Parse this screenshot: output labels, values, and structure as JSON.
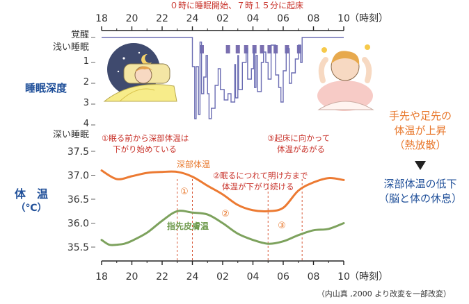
{
  "chart_data": [
    {
      "type": "line",
      "title": "０時に睡眠開始、７時１５分に起床",
      "ylabel": "睡眠深度",
      "x_ticks": [
        "18",
        "20",
        "22",
        "24",
        "02",
        "04",
        "06",
        "08",
        "10"
      ],
      "x_unit": "（時刻）",
      "y_tick_labels": [
        "覚醒",
        "浅い睡眠",
        "1",
        "2",
        "3",
        "4",
        "深い睡眠"
      ],
      "y_levels": [
        "awake",
        "light",
        "1",
        "2",
        "3",
        "4"
      ],
      "series": [
        {
          "points": [
            [
              18,
              0
            ],
            [
              24.0,
              0
            ],
            [
              24.0,
              1.2
            ],
            [
              24.15,
              1.2
            ],
            [
              24.15,
              3.7
            ],
            [
              24.25,
              3.7
            ],
            [
              24.25,
              1.2
            ],
            [
              24.4,
              1.2
            ],
            [
              24.4,
              3.5
            ],
            [
              24.5,
              3.5
            ],
            [
              24.5,
              0.3
            ],
            [
              24.6,
              0.3
            ],
            [
              24.6,
              2.5
            ],
            [
              24.75,
              2.5
            ],
            [
              24.75,
              1.7
            ],
            [
              24.9,
              1.7
            ],
            [
              24.9,
              0.8
            ],
            [
              25.0,
              0.8
            ],
            [
              25.0,
              2.5
            ],
            [
              25.1,
              2.5
            ],
            [
              25.1,
              3.7
            ],
            [
              25.25,
              3.7
            ],
            [
              25.25,
              3.2
            ],
            [
              25.5,
              3.2
            ],
            [
              25.5,
              2.1
            ],
            [
              25.7,
              2.1
            ],
            [
              25.7,
              1.3
            ],
            [
              25.85,
              1.3
            ],
            [
              25.85,
              2.3
            ],
            [
              26.1,
              2.3
            ],
            [
              26.1,
              2.8
            ],
            [
              26.35,
              2.8
            ],
            [
              26.35,
              2.5
            ],
            [
              26.55,
              2.5
            ],
            [
              26.55,
              2.9
            ],
            [
              26.8,
              2.9
            ],
            [
              26.8,
              1.1
            ],
            [
              26.85,
              1.1
            ],
            [
              26.85,
              2.7
            ],
            [
              27.0,
              2.7
            ],
            [
              27.0,
              0.8
            ],
            [
              27.05,
              0.8
            ],
            [
              27.05,
              2.3
            ],
            [
              27.3,
              2.3
            ],
            [
              27.3,
              1.0
            ],
            [
              27.55,
              1.0
            ],
            [
              27.55,
              0.6
            ],
            [
              27.65,
              0.6
            ],
            [
              27.65,
              1.8
            ],
            [
              27.9,
              1.8
            ],
            [
              27.9,
              1.3
            ],
            [
              28.05,
              1.3
            ],
            [
              28.05,
              0.6
            ],
            [
              28.1,
              0.6
            ],
            [
              28.1,
              2.2
            ],
            [
              28.2,
              2.2
            ],
            [
              28.2,
              0.8
            ],
            [
              28.3,
              0.8
            ],
            [
              28.3,
              2.4
            ],
            [
              28.55,
              2.4
            ],
            [
              28.55,
              1.0
            ],
            [
              28.7,
              1.0
            ],
            [
              28.7,
              0.7
            ],
            [
              28.85,
              0.7
            ],
            [
              28.85,
              1.0
            ],
            [
              29.0,
              1.0
            ],
            [
              29.0,
              1.8
            ],
            [
              29.2,
              1.8
            ],
            [
              29.2,
              0.5
            ],
            [
              29.5,
              0.5
            ],
            [
              29.5,
              1.6
            ],
            [
              29.7,
              1.6
            ],
            [
              29.7,
              2.2
            ],
            [
              29.85,
              2.2
            ],
            [
              29.85,
              2.9
            ],
            [
              30.0,
              2.9
            ],
            [
              30.0,
              1.4
            ],
            [
              30.2,
              1.4
            ],
            [
              30.2,
              0.6
            ],
            [
              30.4,
              0.6
            ],
            [
              30.4,
              2.0
            ],
            [
              30.55,
              2.0
            ],
            [
              30.55,
              1.5
            ],
            [
              30.8,
              1.5
            ],
            [
              30.8,
              0.9
            ],
            [
              31.0,
              0.9
            ],
            [
              31.0,
              0.5
            ],
            [
              31.15,
              0.5
            ],
            [
              31.15,
              1.0
            ],
            [
              31.25,
              1.0
            ],
            [
              31.25,
              0.0
            ],
            [
              34,
              0.0
            ]
          ]
        }
      ],
      "wake_markers": [
        24.62,
        26.35,
        27.0,
        27.55,
        28.1,
        28.6,
        29.1,
        29.5,
        30.25,
        31.05
      ]
    },
    {
      "type": "line",
      "ylabel": "体　温\n（℃）",
      "x_ticks": [
        "18",
        "20",
        "22",
        "24",
        "02",
        "04",
        "06",
        "08",
        "10"
      ],
      "x_unit": "（時刻）",
      "y_ticks": [
        35.5,
        36.0,
        36.5,
        37.0,
        37.5
      ],
      "ylim": [
        35.4,
        37.6
      ],
      "series": [
        {
          "name": "深部体温",
          "color": "#ec7a32",
          "x": [
            18,
            19,
            20,
            21,
            22,
            23,
            24,
            25,
            26,
            27,
            28,
            29,
            30,
            31,
            32,
            33,
            34
          ],
          "values": [
            37.1,
            36.92,
            36.98,
            37.05,
            37.07,
            37.07,
            36.97,
            36.78,
            36.6,
            36.38,
            36.27,
            36.25,
            36.32,
            36.68,
            36.85,
            36.94,
            36.9
          ]
        },
        {
          "name": "指先皮膚温",
          "color": "#7da25d",
          "x": [
            18,
            18.5,
            19,
            19.5,
            20,
            21,
            22,
            23,
            24,
            25,
            26,
            27,
            28,
            29,
            30,
            31,
            32,
            33,
            34
          ],
          "values": [
            35.65,
            35.55,
            35.55,
            35.57,
            35.63,
            35.8,
            36.05,
            36.25,
            36.22,
            36.18,
            36.0,
            35.78,
            35.65,
            35.57,
            35.62,
            35.75,
            35.85,
            35.88,
            36.0
          ]
        }
      ],
      "dashed_lines": [
        23.0,
        24.0,
        29.0,
        31.25
      ],
      "phase_labels": [
        "①",
        "②",
        "③"
      ]
    }
  ],
  "annotations": {
    "note1_line1": "①眠る前から深部体温は",
    "note1_line2": "下がり始めている",
    "note2_line1": "②眠るにつれて明け方まで",
    "note2_line2": "体温が下がり続ける",
    "note3_line1": "③起床に向かって",
    "note3_line2": "体温があがる",
    "side1_line1": "手先や足先の",
    "side1_line2": "体温が上昇",
    "side1_line3": "（熱放散）",
    "arrow_icon": "triangle-down",
    "side2_line1": "深部体温の低下",
    "side2_line2": "（脳と体の休息）",
    "source": "（内山真 ,2000 より改変を一部改変）"
  }
}
